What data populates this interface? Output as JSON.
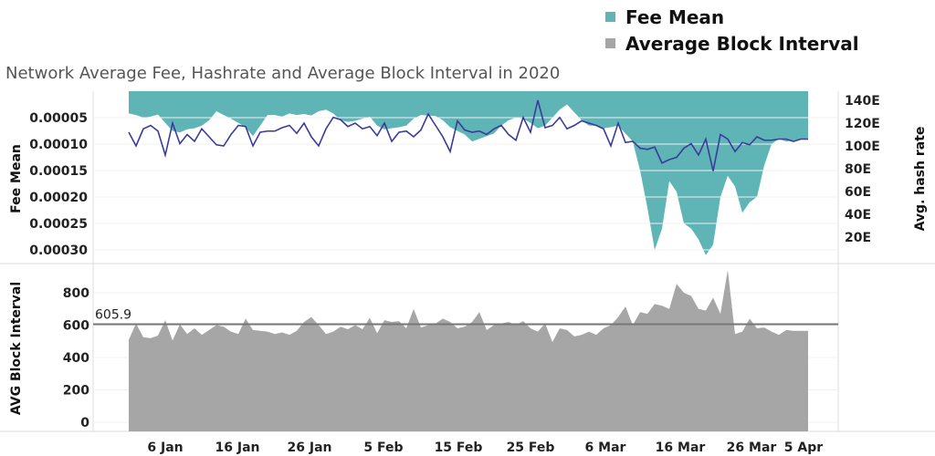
{
  "legend": [
    {
      "label": "Fee Mean",
      "color": "#5fb4b6"
    },
    {
      "label": "Average Block Interval",
      "color": "#a6a6a6"
    }
  ],
  "chart_data": {
    "type": "area",
    "title": "Network Average Fee, Hashrate and Average Block Interval in 2020",
    "x_start": "2020-01-01",
    "x_step_days": 1,
    "x_ticks": [
      "6 Jan",
      "16 Jan",
      "26 Jan",
      "5 Feb",
      "15 Feb",
      "25 Feb",
      "6 Mar",
      "16 Mar",
      "26 Mar",
      "5 Apr"
    ],
    "panels": [
      {
        "name": "top",
        "left_axis": {
          "label": "Fee Mean",
          "ticks": [
            "0.00005",
            "0.00010",
            "0.00015",
            "0.00020",
            "0.00025",
            "0.00030"
          ],
          "range": [
            0,
            0.00031
          ],
          "inverted": true
        },
        "right_axis": {
          "label": "Avg. hash rate",
          "ticks": [
            "140E",
            "120E",
            "100E",
            "80E",
            "60E",
            "40E",
            "20E"
          ],
          "range": [
            0,
            148
          ]
        },
        "series": [
          {
            "name": "Fee Mean",
            "type": "area",
            "color": "#5fb4b6",
            "unit": "1e-5",
            "values": [
              4.2,
              4.5,
              5,
              4.8,
              4.4,
              6,
              7.5,
              7.8,
              7.2,
              7,
              6.5,
              5.5,
              3.8,
              4.5,
              5.2,
              6,
              6.8,
              8.5,
              6.5,
              4.5,
              4.5,
              4.8,
              4.2,
              4.5,
              4.3,
              4.6,
              3.8,
              3.5,
              4.2,
              5.5,
              5.8,
              5.6,
              5.2,
              4.8,
              6.5,
              7.2,
              7.0,
              6.8,
              6.5,
              5.2,
              4.5,
              4.6,
              4.7,
              5.5,
              6.8,
              7.5,
              8.2,
              9.5,
              9.0,
              8.5,
              8.0,
              6.5,
              5.5,
              5.0,
              5.2,
              6.0,
              7.0,
              6.5,
              5.0,
              3.5,
              2.5,
              4.0,
              5.5,
              6.5,
              6.5,
              7.0,
              6.8,
              6.5,
              8.0,
              9.5,
              15,
              22,
              30,
              26,
              17,
              19,
              25,
              26,
              28,
              31,
              29,
              20,
              16,
              18,
              23,
              21,
              20,
              14,
              10,
              9,
              9.5,
              9.3,
              9,
              9.2
            ]
          },
          {
            "name": "Avg. hash rate",
            "type": "line",
            "color": "#3b3b9a",
            "unit": "EH/s",
            "values": [
              112,
              100,
              115,
              118,
              113,
              92,
              120,
              102,
              110,
              104,
              115,
              108,
              101,
              100,
              110,
              118,
              117,
              100,
              112,
              113,
              113,
              116,
              118,
              111,
              120,
              108,
              100,
              115,
              125,
              123,
              117,
              120,
              115,
              117,
              109,
              120,
              104,
              112,
              113,
              108,
              114,
              128,
              118,
              108,
              95,
              122,
              114,
              112,
              113,
              110,
              115,
              118,
              110,
              105,
              125,
              112,
              140,
              116,
              118,
              125,
              115,
              118,
              122,
              120,
              118,
              115,
              100,
              120,
              103,
              104,
              98,
              97,
              99,
              85,
              88,
              90,
              98,
              102,
              92,
              106,
              78,
              110,
              106,
              95,
              103,
              101,
              108,
              105,
              105,
              106,
              106,
              104,
              106,
              106
            ]
          }
        ]
      },
      {
        "name": "bottom",
        "left_axis": {
          "label": "AVG Block Interval",
          "ticks": [
            "0",
            "200",
            "400",
            "600",
            "800"
          ],
          "range": [
            -30,
            980
          ]
        },
        "reference_line": {
          "value": 605.9,
          "label": "605.9"
        },
        "series": [
          {
            "name": "Average Block Interval",
            "type": "area",
            "color": "#a6a6a6",
            "unit": "s",
            "values": [
              510,
              610,
              525,
              520,
              535,
              630,
              505,
              605,
              545,
              580,
              540,
              570,
              600,
              590,
              560,
              545,
              640,
              570,
              565,
              560,
              545,
              555,
              540,
              565,
              620,
              650,
              600,
              545,
              560,
              590,
              575,
              600,
              575,
              645,
              550,
              630,
              620,
              625,
              580,
              700,
              585,
              600,
              610,
              640,
              620,
              580,
              590,
              620,
              680,
              570,
              600,
              610,
              620,
              600,
              625,
              580,
              560,
              610,
              495,
              580,
              570,
              530,
              540,
              560,
              540,
              580,
              600,
              650,
              715,
              600,
              680,
              670,
              730,
              720,
              700,
              855,
              800,
              780,
              700,
              690,
              770,
              670,
              940,
              545,
              560,
              640,
              580,
              585,
              560,
              540,
              570,
              565,
              565,
              565
            ]
          }
        ]
      }
    ]
  }
}
